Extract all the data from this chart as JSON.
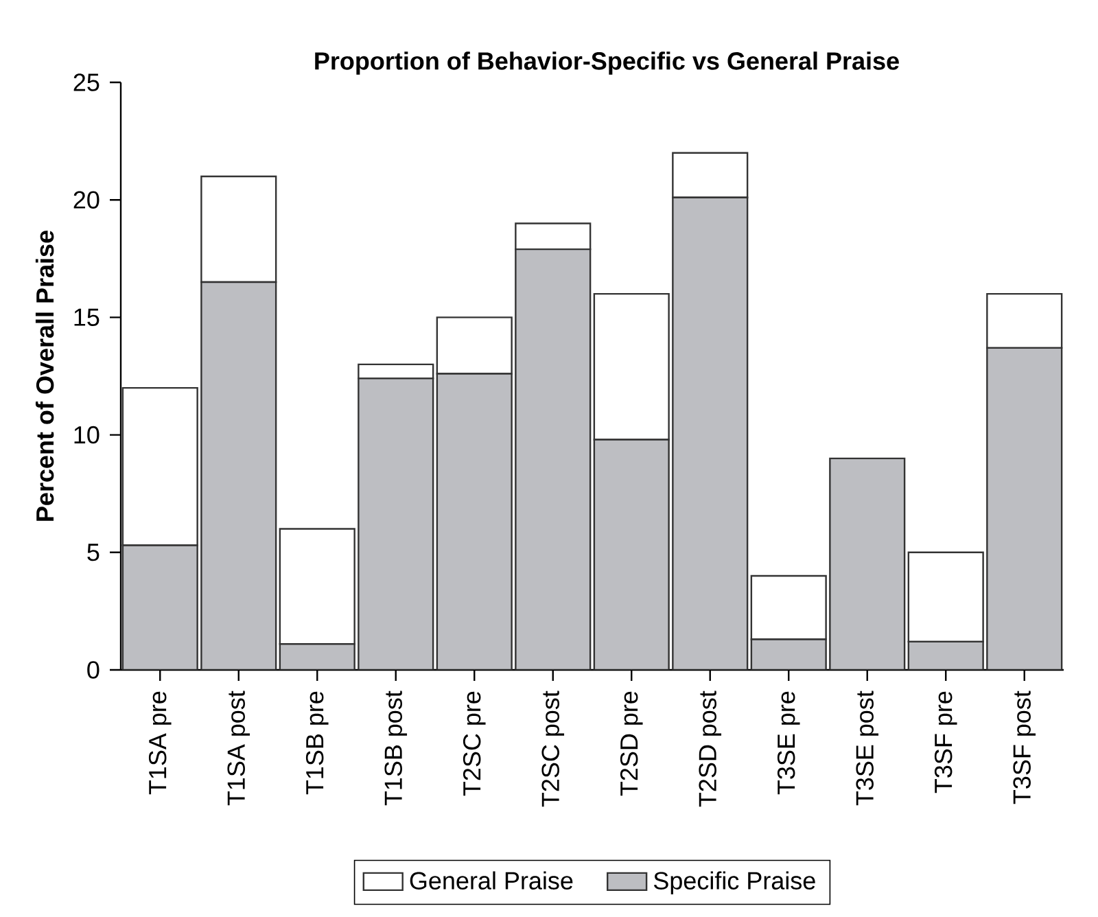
{
  "chart_data": {
    "type": "bar",
    "title": "Proportion of Behavior-Specific vs General Praise",
    "ylabel": "Percent of Overall Praise",
    "categories": [
      "T1SA pre",
      "T1SA post",
      "T1SB pre",
      "T1SB post",
      "T2SC pre",
      "T2SC post",
      "T2SD pre",
      "T2SD post",
      "T3SE pre",
      "T3SE post",
      "T3SF pre",
      "T3SF post"
    ],
    "stacked": true,
    "legend": "bottom",
    "ylim": [
      0,
      25
    ],
    "yticks": [
      0,
      5,
      10,
      15,
      20,
      25
    ],
    "series": [
      {
        "name": "Specific Praise",
        "color": "#bdbec2",
        "values": [
          5.3,
          16.5,
          1.1,
          12.4,
          12.6,
          17.9,
          9.8,
          20.1,
          1.3,
          9.0,
          1.2,
          13.7
        ]
      },
      {
        "name": "General Praise",
        "color": "#ffffff",
        "values": [
          6.7,
          4.5,
          4.9,
          0.6,
          2.4,
          1.1,
          6.2,
          1.9,
          2.7,
          0,
          3.8,
          2.3
        ]
      }
    ]
  }
}
